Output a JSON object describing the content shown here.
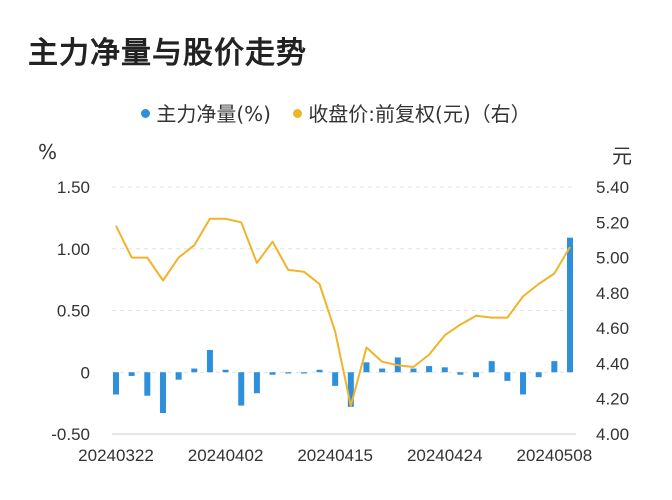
{
  "chart_data": {
    "type": "bar+line",
    "title": "主力净量与股价走势",
    "legend": {
      "placement": "top",
      "items": [
        {
          "label": "主力净量(%)",
          "color": "#2e8fdb",
          "marker": "dot"
        },
        {
          "label": "收盘价:前复权(元)（右）",
          "color": "#f0b429",
          "marker": "dot"
        }
      ]
    },
    "left_axis": {
      "unit": "%",
      "ylim": [
        -0.5,
        1.5
      ],
      "ticks": [
        "1.50",
        "1.00",
        "0.50",
        "0",
        "-0.50"
      ],
      "tick_values": [
        1.5,
        1.0,
        0.5,
        0,
        -0.5
      ]
    },
    "right_axis": {
      "unit": "元",
      "ylim": [
        4.0,
        5.4
      ],
      "ticks": [
        "5.40",
        "5.20",
        "5.00",
        "4.80",
        "4.60",
        "4.40",
        "4.20",
        "4.00"
      ],
      "tick_values": [
        5.4,
        5.2,
        5.0,
        4.8,
        4.6,
        4.4,
        4.2,
        4.0
      ]
    },
    "x_tick_labels": [
      "20240322",
      "20240402",
      "20240415",
      "20240424",
      "20240508"
    ],
    "x_tick_indices": [
      0,
      7,
      14,
      21,
      28
    ],
    "grid": true,
    "series": [
      {
        "name": "主力净量(%)",
        "kind": "bar",
        "color": "#2e8fdb",
        "values": [
          -0.18,
          -0.03,
          -0.19,
          -0.33,
          -0.06,
          0.03,
          0.18,
          0.02,
          -0.27,
          -0.17,
          -0.02,
          -0.01,
          -0.01,
          0.02,
          -0.11,
          -0.28,
          0.08,
          0.03,
          0.12,
          0.03,
          0.05,
          0.04,
          -0.02,
          -0.04,
          0.09,
          -0.07,
          -0.18,
          -0.04,
          0.09,
          1.09
        ]
      },
      {
        "name": "收盘价:前复权(元)",
        "kind": "line",
        "color": "#f0b429",
        "values": [
          5.18,
          5.0,
          5.0,
          4.87,
          5.0,
          5.07,
          5.22,
          5.22,
          5.2,
          4.97,
          5.09,
          4.93,
          4.92,
          4.85,
          4.58,
          4.16,
          4.49,
          4.41,
          4.39,
          4.38,
          4.45,
          4.56,
          4.62,
          4.67,
          4.66,
          4.66,
          4.78,
          4.85,
          4.91,
          5.06
        ]
      }
    ]
  }
}
